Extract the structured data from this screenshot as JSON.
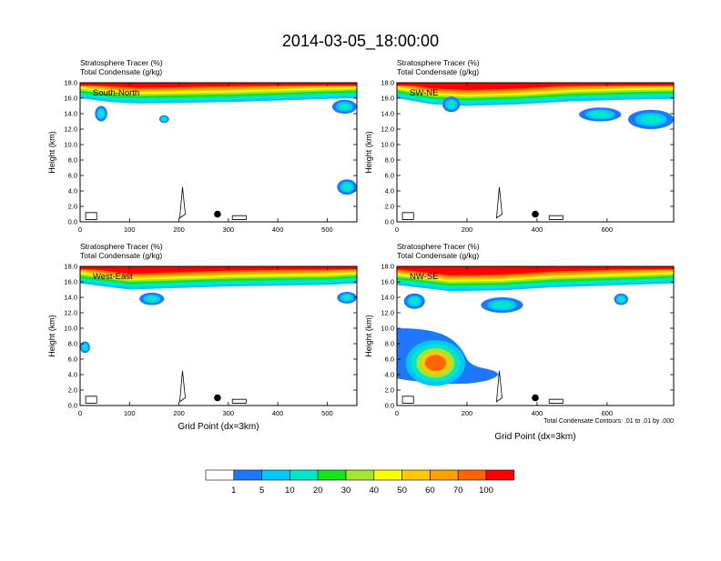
{
  "title": "2014-03-05_18:00:00",
  "chart_data": [
    {
      "type": "heatmap",
      "panel_label": "South-North",
      "title_line1": "Stratosphere Tracer   (%)",
      "title_line2": "Total Condensate   (g/kg)",
      "ylabel": "Height (km)",
      "xlabel": "",
      "xlim": [
        0,
        560
      ],
      "ylim": [
        0,
        18
      ],
      "xticks": [
        0,
        100,
        200,
        300,
        400,
        500
      ],
      "yticks": [
        0.0,
        2.0,
        4.0,
        6.0,
        8.0,
        10.0,
        12.0,
        14.0,
        16.0,
        18.0
      ],
      "marker": [
        278,
        1.0
      ],
      "tracer_layer": [
        [
          0,
          16.0
        ],
        [
          60,
          15.5
        ],
        [
          120,
          15.3
        ],
        [
          200,
          15.4
        ],
        [
          300,
          15.5
        ],
        [
          400,
          15.7
        ],
        [
          500,
          15.9
        ],
        [
          560,
          16.0
        ]
      ],
      "tracer_patches": [
        [
          30,
          13.0,
          25,
          2.0
        ],
        [
          160,
          12.8,
          20,
          1.0
        ],
        [
          510,
          14.0,
          50,
          1.8
        ],
        [
          520,
          3.5,
          40,
          2.0
        ]
      ]
    },
    {
      "type": "heatmap",
      "panel_label": "SW-NE",
      "title_line1": "Stratosphere Tracer   (%)",
      "title_line2": "Total Condensate   (g/kg)",
      "ylabel": "Height (km)",
      "xlabel": "",
      "xlim": [
        0,
        790
      ],
      "ylim": [
        0,
        18
      ],
      "xticks": [
        0,
        200,
        400,
        600
      ],
      "yticks": [
        0.0,
        2.0,
        4.0,
        6.0,
        8.0,
        10.0,
        12.0,
        14.0,
        16.0,
        18.0
      ],
      "marker": [
        395,
        1.0
      ],
      "tracer_layer": [
        [
          0,
          16.0
        ],
        [
          100,
          15.2
        ],
        [
          200,
          15.0
        ],
        [
          350,
          15.2
        ],
        [
          500,
          15.6
        ],
        [
          650,
          15.8
        ],
        [
          790,
          15.9
        ]
      ],
      "tracer_patches": [
        [
          130,
          14.2,
          50,
          2.0
        ],
        [
          520,
          13.0,
          120,
          1.8
        ],
        [
          660,
          12.0,
          130,
          2.5
        ]
      ]
    },
    {
      "type": "heatmap",
      "panel_label": "West-East",
      "title_line1": "Stratosphere Tracer   (%)",
      "title_line2": "Total Condensate   (g/kg)",
      "ylabel": "Height (km)",
      "xlabel": "Grid Point (dx=3km)",
      "xlim": [
        0,
        560
      ],
      "ylim": [
        0,
        18
      ],
      "xticks": [
        0,
        100,
        200,
        300,
        400,
        500
      ],
      "yticks": [
        0.0,
        2.0,
        4.0,
        6.0,
        8.0,
        10.0,
        12.0,
        14.0,
        16.0,
        18.0
      ],
      "marker": [
        278,
        1.0
      ],
      "tracer_layer": [
        [
          0,
          15.8
        ],
        [
          100,
          15.0
        ],
        [
          200,
          15.2
        ],
        [
          300,
          15.4
        ],
        [
          400,
          15.5
        ],
        [
          500,
          15.6
        ],
        [
          560,
          15.8
        ]
      ],
      "tracer_patches": [
        [
          0,
          6.8,
          20,
          1.5
        ],
        [
          120,
          13.0,
          50,
          1.6
        ],
        [
          520,
          13.2,
          40,
          1.5
        ]
      ]
    },
    {
      "type": "heatmap",
      "panel_label": "NW-SE",
      "title_line1": "Stratosphere Tracer   (%)",
      "title_line2": "Total Condensate   (g/kg)",
      "ylabel": "Height (km)",
      "xlabel": "Grid Point (dx=3km)",
      "note": "Total Condensate Contours: .01 to .01 by .000",
      "xlim": [
        0,
        790
      ],
      "ylim": [
        0,
        18
      ],
      "xticks": [
        0,
        200,
        400,
        600
      ],
      "yticks": [
        0.0,
        2.0,
        4.0,
        6.0,
        8.0,
        10.0,
        12.0,
        14.0,
        16.0,
        18.0
      ],
      "marker": [
        395,
        1.0
      ],
      "tracer_layer": [
        [
          0,
          15.6
        ],
        [
          150,
          14.8
        ],
        [
          300,
          14.9
        ],
        [
          450,
          15.3
        ],
        [
          600,
          15.5
        ],
        [
          790,
          15.8
        ]
      ],
      "tracer_patches": [
        [
          20,
          12.5,
          60,
          2.0
        ],
        [
          240,
          12.0,
          120,
          2.0
        ],
        [
          620,
          13.0,
          40,
          1.5
        ]
      ]
    }
  ],
  "colorbar": {
    "levels": [
      "1",
      "5",
      "10",
      "20",
      "30",
      "40",
      "50",
      "60",
      "70",
      "100"
    ],
    "colors": [
      "#ffffff",
      "#1e78ff",
      "#00c8ff",
      "#00e6c8",
      "#14e614",
      "#a0e632",
      "#ffff00",
      "#ffc800",
      "#ffa000",
      "#ff6400",
      "#ff0000"
    ]
  }
}
